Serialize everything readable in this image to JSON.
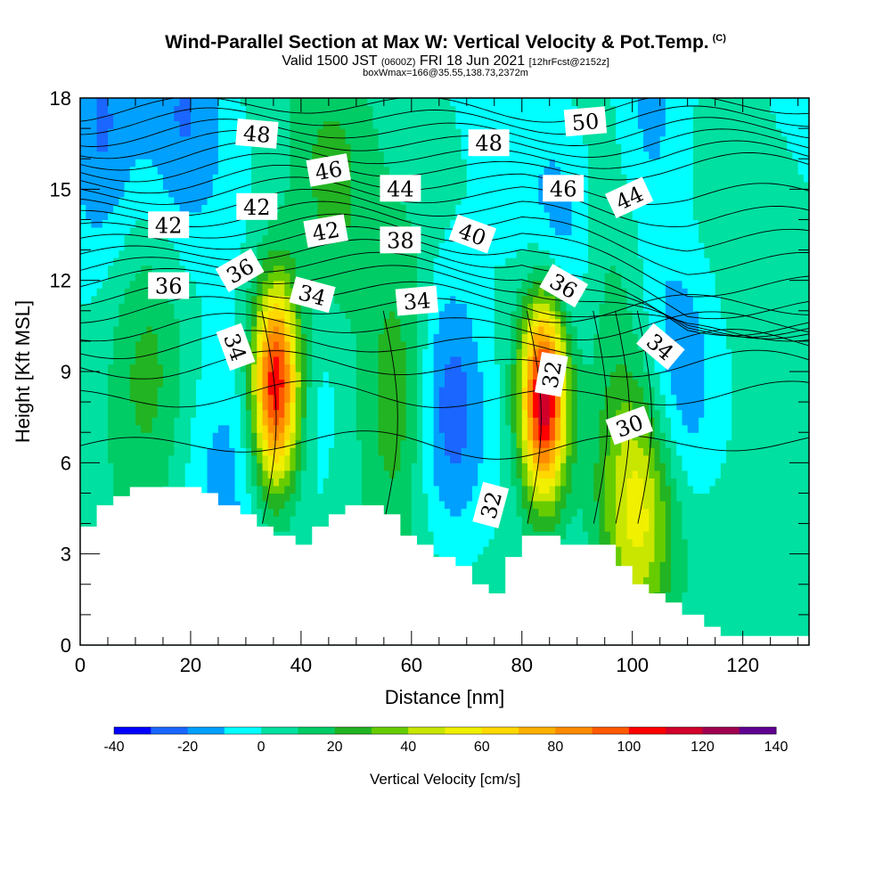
{
  "header": {
    "title": "Wind-Parallel Section at Max W: Vertical Velocity & Pot.Temp.",
    "copyright": "(C)",
    "valid_prefix": "Valid 1500 JST",
    "valid_utc": "(0600Z)",
    "valid_date": "FRI 18 Jun 2021",
    "forecast": "[12hrFcst@2152z]",
    "box_note": "boxWmax=166@35.55,138.73,2372m"
  },
  "chart_data": {
    "type": "heatmap",
    "xlabel": "Distance [nm]",
    "ylabel": "Height [Kft MSL]",
    "xlim": [
      0,
      132
    ],
    "ylim": [
      0,
      18
    ],
    "x_ticks": [
      "0",
      "20",
      "40",
      "60",
      "80",
      "100",
      "120"
    ],
    "y_ticks": [
      "0",
      "3",
      "6",
      "9",
      "12",
      "15",
      "18"
    ],
    "colorbar": {
      "title": "Vertical Velocity [cm/s]",
      "ticks": [
        "-40",
        "-20",
        "0",
        "20",
        "40",
        "60",
        "80",
        "100",
        "120",
        "140"
      ],
      "levels": [
        -40,
        -30,
        -20,
        -10,
        0,
        10,
        20,
        30,
        40,
        50,
        60,
        70,
        80,
        90,
        100,
        110,
        120,
        130,
        140
      ],
      "colors": [
        "#0000ff",
        "#1a66ff",
        "#00a0ff",
        "#00ffff",
        "#00e0a0",
        "#00cc66",
        "#22b422",
        "#66cc00",
        "#c8e600",
        "#f0f000",
        "#ffd800",
        "#ffb000",
        "#ff8c00",
        "#ff5a00",
        "#ff0000",
        "#d0002a",
        "#a00050",
        "#600090"
      ]
    },
    "terrain_kft": [
      [
        0,
        3.9
      ],
      [
        3,
        3.9
      ],
      [
        3,
        4.6
      ],
      [
        6,
        4.6
      ],
      [
        6,
        4.9
      ],
      [
        9,
        4.9
      ],
      [
        9,
        5.2
      ],
      [
        22,
        5.2
      ],
      [
        22,
        5.0
      ],
      [
        25,
        5.0
      ],
      [
        25,
        4.6
      ],
      [
        29,
        4.6
      ],
      [
        29,
        4.3
      ],
      [
        32,
        4.3
      ],
      [
        32,
        3.9
      ],
      [
        35,
        3.9
      ],
      [
        35,
        3.6
      ],
      [
        39,
        3.6
      ],
      [
        39,
        3.3
      ],
      [
        42,
        3.3
      ],
      [
        42,
        3.9
      ],
      [
        45,
        3.9
      ],
      [
        45,
        4.3
      ],
      [
        48,
        4.3
      ],
      [
        48,
        4.6
      ],
      [
        55,
        4.6
      ],
      [
        55,
        4.3
      ],
      [
        58,
        4.3
      ],
      [
        58,
        3.6
      ],
      [
        61,
        3.6
      ],
      [
        61,
        3.3
      ],
      [
        64,
        3.3
      ],
      [
        64,
        2.9
      ],
      [
        68,
        2.9
      ],
      [
        68,
        2.6
      ],
      [
        71,
        2.6
      ],
      [
        71,
        2.0
      ],
      [
        74,
        2.0
      ],
      [
        74,
        1.7
      ],
      [
        77,
        1.7
      ],
      [
        77,
        2.9
      ],
      [
        80,
        2.9
      ],
      [
        80,
        3.6
      ],
      [
        87,
        3.6
      ],
      [
        87,
        3.3
      ],
      [
        97,
        3.3
      ],
      [
        97,
        2.6
      ],
      [
        100,
        2.6
      ],
      [
        100,
        2.0
      ],
      [
        103,
        2.0
      ],
      [
        103,
        1.7
      ],
      [
        106,
        1.7
      ],
      [
        106,
        1.4
      ],
      [
        109,
        1.4
      ],
      [
        109,
        1.0
      ],
      [
        113,
        1.0
      ],
      [
        113,
        0.6
      ],
      [
        116,
        0.6
      ],
      [
        116,
        0.3
      ],
      [
        121,
        0.3
      ],
      [
        121,
        0.3
      ],
      [
        132,
        0.3
      ]
    ],
    "updraft_cores": [
      {
        "x": 35.5,
        "y": 8.6,
        "w_max": 110
      },
      {
        "x": 58.5,
        "y": 8.2,
        "w_max": 30
      },
      {
        "x": 84.0,
        "y": 8.2,
        "w_max": 120
      },
      {
        "x": 101.0,
        "y": 4.5,
        "w_max": 55
      },
      {
        "x": 45.0,
        "y": 14.5,
        "w_max": 20
      },
      {
        "x": 12.0,
        "y": 8.5,
        "w_max": 20
      },
      {
        "x": 95.0,
        "y": 12.5,
        "w_max": 15
      }
    ],
    "downdraft_cores": [
      {
        "x": 3.5,
        "y": 16.5,
        "w_min": -25
      },
      {
        "x": 66.0,
        "y": 8.0,
        "w_min": -35
      },
      {
        "x": 108.0,
        "y": 8.4,
        "w_min": -25
      },
      {
        "x": 87.0,
        "y": 12.8,
        "w_min": -20
      },
      {
        "x": 26.0,
        "y": 5.8,
        "w_min": -15
      },
      {
        "x": 41.5,
        "y": 8.6,
        "w_min": -10
      },
      {
        "x": 19.0,
        "y": 17.5,
        "w_min": -20
      },
      {
        "x": 103.0,
        "y": 17.6,
        "w_min": -20
      }
    ],
    "theta_contour_labels": [
      {
        "text": "48",
        "x": 32,
        "y": 16.8,
        "angle": 5
      },
      {
        "text": "46",
        "x": 45,
        "y": 15.6,
        "angle": -10
      },
      {
        "text": "44",
        "x": 58,
        "y": 15.0,
        "angle": 0
      },
      {
        "text": "48",
        "x": 74,
        "y": 16.5,
        "angle": 0
      },
      {
        "text": "50",
        "x": 91.5,
        "y": 17.2,
        "angle": -5
      },
      {
        "text": "46",
        "x": 87.5,
        "y": 15.0,
        "angle": 0
      },
      {
        "text": "44",
        "x": 99.5,
        "y": 14.7,
        "angle": -25
      },
      {
        "text": "42",
        "x": 16,
        "y": 13.8,
        "angle": 0
      },
      {
        "text": "42",
        "x": 32,
        "y": 14.4,
        "angle": 0
      },
      {
        "text": "42",
        "x": 44.5,
        "y": 13.6,
        "angle": -10
      },
      {
        "text": "38",
        "x": 58,
        "y": 13.3,
        "angle": 0
      },
      {
        "text": "40",
        "x": 71,
        "y": 13.5,
        "angle": 20
      },
      {
        "text": "36",
        "x": 16,
        "y": 11.8,
        "angle": 0
      },
      {
        "text": "36",
        "x": 29,
        "y": 12.3,
        "angle": -30
      },
      {
        "text": "34",
        "x": 42,
        "y": 11.5,
        "angle": 15
      },
      {
        "text": "34",
        "x": 61,
        "y": 11.3,
        "angle": -5
      },
      {
        "text": "36",
        "x": 87.5,
        "y": 11.8,
        "angle": 30
      },
      {
        "text": "34",
        "x": 28,
        "y": 9.8,
        "angle": 70
      },
      {
        "text": "32",
        "x": 85.5,
        "y": 8.9,
        "angle": -80
      },
      {
        "text": "34",
        "x": 105,
        "y": 9.8,
        "angle": 40
      },
      {
        "text": "30",
        "x": 99.5,
        "y": 7.2,
        "angle": -20
      },
      {
        "text": "32",
        "x": 74.5,
        "y": 4.6,
        "angle": -75
      }
    ]
  }
}
